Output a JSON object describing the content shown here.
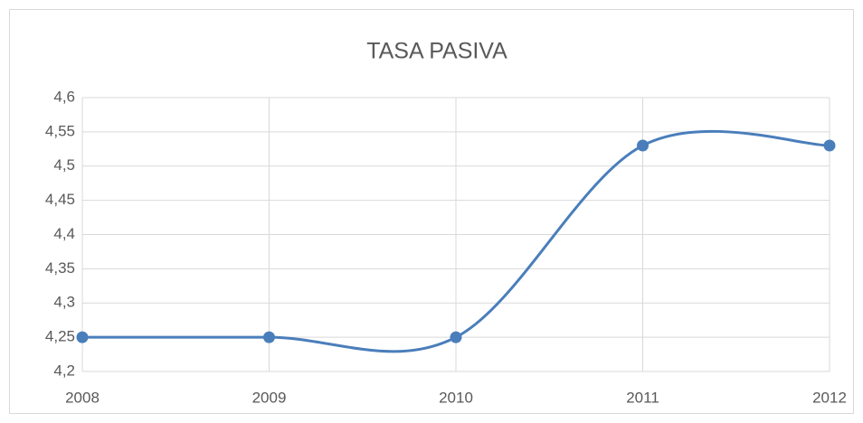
{
  "chart_data": {
    "type": "line",
    "title": "TASA PASIVA",
    "x": [
      2008,
      2009,
      2010,
      2011,
      2012
    ],
    "series": [
      {
        "color": "#4a7ebb",
        "values": [
          4.25,
          4.25,
          4.25,
          4.53,
          4.53
        ]
      }
    ],
    "xlim": [
      2008,
      2012
    ],
    "xticks": [
      2008,
      2009,
      2010,
      2011,
      2012
    ],
    "ylim": [
      4.2,
      4.6
    ],
    "yticks": [
      {
        "value": 4.2,
        "label": "4,2"
      },
      {
        "value": 4.25,
        "label": "4,25"
      },
      {
        "value": 4.3,
        "label": "4,3"
      },
      {
        "value": 4.35,
        "label": "4,35"
      },
      {
        "value": 4.4,
        "label": "4,4"
      },
      {
        "value": 4.45,
        "label": "4,45"
      },
      {
        "value": 4.5,
        "label": "4,5"
      },
      {
        "value": 4.55,
        "label": "4,55"
      },
      {
        "value": 4.6,
        "label": "4,6"
      }
    ],
    "grid": true,
    "smooth": true
  }
}
